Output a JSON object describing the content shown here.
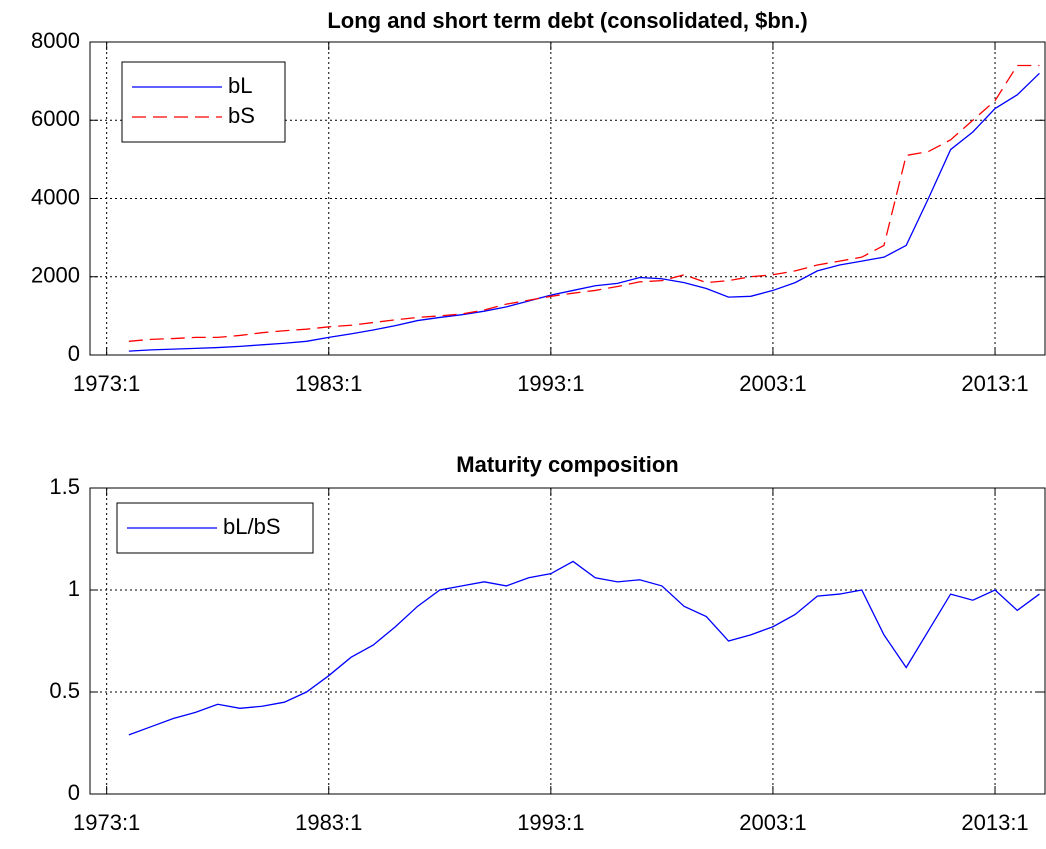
{
  "chart_data": [
    {
      "type": "line",
      "title": "Long and short term debt (consolidated, $bn.)",
      "x": [
        1974,
        1975,
        1976,
        1977,
        1978,
        1979,
        1980,
        1981,
        1982,
        1983,
        1984,
        1985,
        1986,
        1987,
        1988,
        1989,
        1990,
        1991,
        1992,
        1993,
        1994,
        1995,
        1996,
        1997,
        1998,
        1999,
        2000,
        2001,
        2002,
        2003,
        2004,
        2005,
        2006,
        2007,
        2008,
        2009,
        2010,
        2011,
        2012,
        2013,
        2014,
        2015
      ],
      "xlim": [
        1972.25,
        2015.25
      ],
      "xticks": [
        {
          "value": 1973,
          "label": "1973:1"
        },
        {
          "value": 1983,
          "label": "1983:1"
        },
        {
          "value": 1993,
          "label": "1993:1"
        },
        {
          "value": 2003,
          "label": "2003:1"
        },
        {
          "value": 2013,
          "label": "2013:1"
        }
      ],
      "ylim": [
        0,
        8000
      ],
      "yticks": [
        0,
        2000,
        4000,
        6000,
        8000
      ],
      "grid": true,
      "legend": "upper left",
      "series": [
        {
          "name": "bL",
          "color": "#0000ff",
          "line_style": "solid",
          "values": [
            100,
            130,
            150,
            170,
            190,
            220,
            260,
            300,
            350,
            450,
            540,
            640,
            750,
            880,
            960,
            1030,
            1120,
            1230,
            1380,
            1530,
            1650,
            1770,
            1830,
            1980,
            1950,
            1850,
            1700,
            1480,
            1500,
            1650,
            1850,
            2150,
            2300,
            2400,
            2500,
            2800,
            4000,
            5250,
            5700,
            6300,
            6650,
            7200
          ]
        },
        {
          "name": "bS",
          "color": "#ff0000",
          "line_style": "dashed",
          "values": [
            350,
            400,
            420,
            450,
            450,
            500,
            570,
            620,
            660,
            720,
            760,
            830,
            900,
            960,
            1000,
            1050,
            1150,
            1300,
            1400,
            1500,
            1580,
            1650,
            1750,
            1870,
            1900,
            2050,
            1850,
            1900,
            2000,
            2050,
            2150,
            2300,
            2400,
            2500,
            2800,
            5100,
            5200,
            5500,
            6000,
            6500,
            7400,
            7400
          ]
        }
      ]
    },
    {
      "type": "line",
      "title": "Maturity composition",
      "x": [
        1974,
        1975,
        1976,
        1977,
        1978,
        1979,
        1980,
        1981,
        1982,
        1983,
        1984,
        1985,
        1986,
        1987,
        1988,
        1989,
        1990,
        1991,
        1992,
        1993,
        1994,
        1995,
        1996,
        1997,
        1998,
        1999,
        2000,
        2001,
        2002,
        2003,
        2004,
        2005,
        2006,
        2007,
        2008,
        2009,
        2010,
        2011,
        2012,
        2013,
        2014,
        2015
      ],
      "xlim": [
        1972.25,
        2015.25
      ],
      "xticks": [
        {
          "value": 1973,
          "label": "1973:1"
        },
        {
          "value": 1983,
          "label": "1983:1"
        },
        {
          "value": 1993,
          "label": "1993:1"
        },
        {
          "value": 2003,
          "label": "2003:1"
        },
        {
          "value": 2013,
          "label": "2013:1"
        }
      ],
      "ylim": [
        0,
        1.5
      ],
      "yticks": [
        0,
        0.5,
        1,
        1.5
      ],
      "grid": true,
      "legend": "upper left",
      "series": [
        {
          "name": "bL/bS",
          "color": "#0000ff",
          "line_style": "solid",
          "values": [
            0.29,
            0.33,
            0.37,
            0.4,
            0.44,
            0.42,
            0.43,
            0.45,
            0.5,
            0.58,
            0.67,
            0.73,
            0.82,
            0.92,
            1.0,
            1.02,
            1.04,
            1.02,
            1.06,
            1.08,
            1.14,
            1.06,
            1.04,
            1.05,
            1.02,
            0.92,
            0.87,
            0.75,
            0.78,
            0.82,
            0.88,
            0.97,
            0.98,
            1.0,
            0.78,
            0.62,
            0.8,
            0.98,
            0.95,
            1.0,
            0.9,
            0.98
          ]
        }
      ]
    }
  ]
}
